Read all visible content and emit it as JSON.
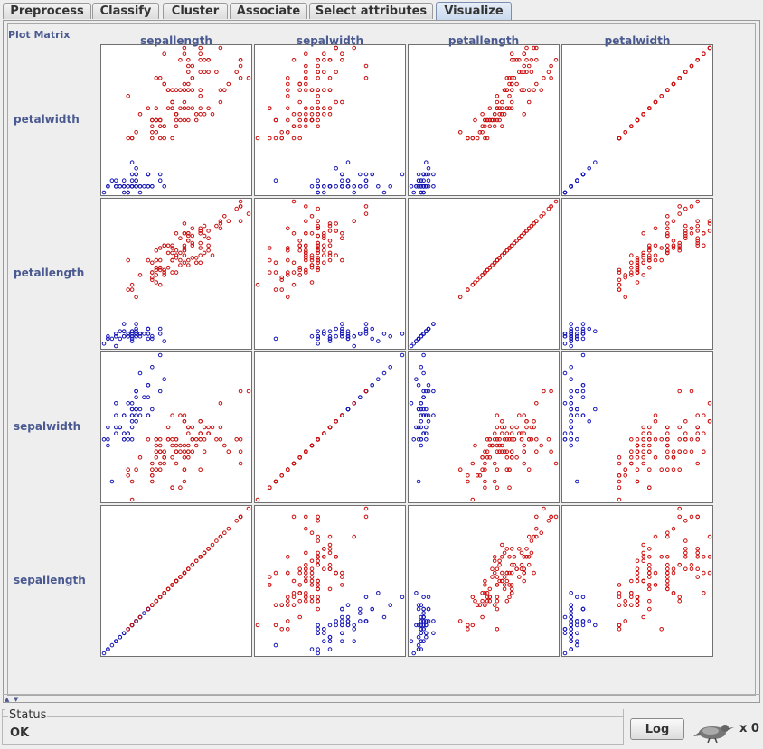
{
  "tabs": [
    {
      "label": "Preprocess",
      "active": false
    },
    {
      "label": "Classify",
      "active": false
    },
    {
      "label": "Cluster",
      "active": false
    },
    {
      "label": "Associate",
      "active": false
    },
    {
      "label": "Select attributes",
      "active": false
    },
    {
      "label": "Visualize",
      "active": true
    }
  ],
  "plot_matrix": {
    "title": "Plot Matrix",
    "columns": [
      "sepallength",
      "sepalwidth",
      "petallength",
      "petalwidth"
    ],
    "rows": [
      "petalwidth",
      "petallength",
      "sepalwidth",
      "sepallength"
    ],
    "colors": {
      "class_a": "#1a1ab8",
      "class_b": "#cc1010"
    }
  },
  "chart_data": {
    "type": "scatter",
    "title": "Plot Matrix",
    "attributes": [
      "sepallength",
      "sepalwidth",
      "petallength",
      "petalwidth"
    ],
    "ranges": {
      "sepallength": [
        4.3,
        7.9
      ],
      "sepalwidth": [
        2.0,
        4.4
      ],
      "petallength": [
        1.0,
        6.9
      ],
      "petalwidth": [
        0.1,
        2.5
      ]
    },
    "series": [
      {
        "color": "#1a1ab8",
        "points": [
          [
            5.1,
            3.5,
            1.4,
            0.2
          ],
          [
            4.9,
            3.0,
            1.4,
            0.2
          ],
          [
            4.7,
            3.2,
            1.3,
            0.2
          ],
          [
            4.6,
            3.1,
            1.5,
            0.2
          ],
          [
            5.0,
            3.6,
            1.4,
            0.2
          ],
          [
            5.4,
            3.9,
            1.7,
            0.4
          ],
          [
            4.6,
            3.4,
            1.4,
            0.3
          ],
          [
            5.0,
            3.4,
            1.5,
            0.2
          ],
          [
            4.4,
            2.9,
            1.4,
            0.2
          ],
          [
            4.9,
            3.1,
            1.5,
            0.1
          ],
          [
            5.4,
            3.7,
            1.5,
            0.2
          ],
          [
            4.8,
            3.4,
            1.6,
            0.2
          ],
          [
            4.8,
            3.0,
            1.4,
            0.1
          ],
          [
            4.3,
            3.0,
            1.1,
            0.1
          ],
          [
            5.8,
            4.0,
            1.2,
            0.2
          ],
          [
            5.7,
            4.4,
            1.5,
            0.4
          ],
          [
            5.4,
            3.9,
            1.3,
            0.4
          ],
          [
            5.1,
            3.5,
            1.4,
            0.3
          ],
          [
            5.7,
            3.8,
            1.7,
            0.3
          ],
          [
            5.1,
            3.8,
            1.5,
            0.3
          ],
          [
            5.4,
            3.4,
            1.7,
            0.2
          ],
          [
            5.1,
            3.7,
            1.5,
            0.4
          ],
          [
            4.6,
            3.6,
            1.0,
            0.2
          ],
          [
            5.1,
            3.3,
            1.7,
            0.5
          ],
          [
            4.8,
            3.4,
            1.9,
            0.2
          ],
          [
            5.0,
            3.0,
            1.6,
            0.2
          ],
          [
            5.0,
            3.4,
            1.6,
            0.4
          ],
          [
            5.2,
            3.5,
            1.5,
            0.2
          ],
          [
            5.2,
            3.4,
            1.4,
            0.2
          ],
          [
            4.7,
            3.2,
            1.6,
            0.2
          ],
          [
            4.8,
            3.1,
            1.6,
            0.2
          ],
          [
            5.4,
            3.4,
            1.5,
            0.4
          ],
          [
            5.2,
            4.1,
            1.5,
            0.1
          ],
          [
            5.5,
            4.2,
            1.4,
            0.2
          ],
          [
            4.9,
            3.1,
            1.5,
            0.2
          ],
          [
            5.0,
            3.2,
            1.2,
            0.2
          ],
          [
            5.5,
            3.5,
            1.3,
            0.2
          ],
          [
            4.9,
            3.6,
            1.4,
            0.1
          ],
          [
            4.4,
            3.0,
            1.3,
            0.2
          ],
          [
            5.1,
            3.4,
            1.5,
            0.2
          ],
          [
            5.0,
            3.5,
            1.3,
            0.3
          ],
          [
            4.5,
            2.3,
            1.3,
            0.3
          ],
          [
            4.4,
            3.2,
            1.3,
            0.2
          ],
          [
            5.0,
            3.5,
            1.6,
            0.6
          ],
          [
            5.1,
            3.8,
            1.9,
            0.4
          ],
          [
            4.8,
            3.0,
            1.4,
            0.3
          ],
          [
            5.1,
            3.8,
            1.6,
            0.2
          ],
          [
            4.6,
            3.2,
            1.4,
            0.2
          ],
          [
            5.3,
            3.7,
            1.5,
            0.2
          ],
          [
            5.0,
            3.3,
            1.4,
            0.2
          ]
        ]
      },
      {
        "color": "#cc1010",
        "points": [
          [
            7.0,
            3.2,
            4.7,
            1.4
          ],
          [
            6.4,
            3.2,
            4.5,
            1.5
          ],
          [
            6.9,
            3.1,
            4.9,
            1.5
          ],
          [
            5.5,
            2.3,
            4.0,
            1.3
          ],
          [
            6.5,
            2.8,
            4.6,
            1.5
          ],
          [
            5.7,
            2.8,
            4.5,
            1.3
          ],
          [
            6.3,
            3.3,
            4.7,
            1.6
          ],
          [
            4.9,
            2.4,
            3.3,
            1.0
          ],
          [
            6.6,
            2.9,
            4.6,
            1.3
          ],
          [
            5.2,
            2.7,
            3.9,
            1.4
          ],
          [
            5.0,
            2.0,
            3.5,
            1.0
          ],
          [
            5.9,
            3.0,
            4.2,
            1.5
          ],
          [
            6.0,
            2.2,
            4.0,
            1.0
          ],
          [
            6.1,
            2.9,
            4.7,
            1.4
          ],
          [
            5.6,
            2.9,
            3.6,
            1.3
          ],
          [
            6.7,
            3.1,
            4.4,
            1.4
          ],
          [
            5.6,
            3.0,
            4.5,
            1.5
          ],
          [
            5.8,
            2.7,
            4.1,
            1.0
          ],
          [
            6.2,
            2.2,
            4.5,
            1.5
          ],
          [
            5.6,
            2.5,
            3.9,
            1.1
          ],
          [
            5.9,
            3.2,
            4.8,
            1.8
          ],
          [
            6.1,
            2.8,
            4.0,
            1.3
          ],
          [
            6.3,
            2.5,
            4.9,
            1.5
          ],
          [
            6.1,
            2.8,
            4.7,
            1.2
          ],
          [
            6.4,
            2.9,
            4.3,
            1.3
          ],
          [
            6.6,
            3.0,
            4.4,
            1.4
          ],
          [
            6.8,
            2.8,
            4.8,
            1.4
          ],
          [
            6.7,
            3.0,
            5.0,
            1.7
          ],
          [
            6.0,
            2.9,
            4.5,
            1.5
          ],
          [
            5.7,
            2.6,
            3.5,
            1.0
          ],
          [
            5.5,
            2.4,
            3.8,
            1.1
          ],
          [
            5.5,
            2.4,
            3.7,
            1.0
          ],
          [
            5.8,
            2.7,
            3.9,
            1.2
          ],
          [
            6.0,
            2.7,
            5.1,
            1.6
          ],
          [
            5.4,
            3.0,
            4.5,
            1.5
          ],
          [
            6.0,
            3.4,
            4.5,
            1.6
          ],
          [
            6.7,
            3.1,
            4.7,
            1.5
          ],
          [
            6.3,
            2.3,
            4.4,
            1.3
          ],
          [
            5.6,
            3.0,
            4.1,
            1.3
          ],
          [
            5.5,
            2.5,
            4.0,
            1.3
          ],
          [
            5.5,
            2.6,
            4.4,
            1.2
          ],
          [
            6.1,
            3.0,
            4.6,
            1.4
          ],
          [
            5.8,
            2.6,
            4.0,
            1.2
          ],
          [
            5.0,
            2.3,
            3.3,
            1.0
          ],
          [
            5.6,
            2.7,
            4.2,
            1.3
          ],
          [
            5.7,
            3.0,
            4.2,
            1.2
          ],
          [
            5.7,
            2.9,
            4.2,
            1.3
          ],
          [
            6.2,
            2.9,
            4.3,
            1.3
          ],
          [
            5.1,
            2.5,
            3.0,
            1.1
          ],
          [
            5.7,
            2.8,
            4.1,
            1.3
          ],
          [
            6.3,
            3.3,
            6.0,
            2.5
          ],
          [
            5.8,
            2.7,
            5.1,
            1.9
          ],
          [
            7.1,
            3.0,
            5.9,
            2.1
          ],
          [
            6.3,
            2.9,
            5.6,
            1.8
          ],
          [
            6.5,
            3.0,
            5.8,
            2.2
          ],
          [
            7.6,
            3.0,
            6.6,
            2.1
          ],
          [
            4.9,
            2.5,
            4.5,
            1.7
          ],
          [
            7.3,
            2.9,
            6.3,
            1.8
          ],
          [
            6.7,
            2.5,
            5.8,
            1.8
          ],
          [
            7.2,
            3.6,
            6.1,
            2.5
          ],
          [
            6.5,
            3.2,
            5.1,
            2.0
          ],
          [
            6.4,
            2.7,
            5.3,
            1.9
          ],
          [
            6.8,
            3.0,
            5.5,
            2.1
          ],
          [
            5.7,
            2.5,
            5.0,
            2.0
          ],
          [
            5.8,
            2.8,
            5.1,
            2.4
          ],
          [
            6.4,
            3.2,
            5.3,
            2.3
          ],
          [
            6.5,
            3.0,
            5.5,
            1.8
          ],
          [
            7.7,
            3.8,
            6.7,
            2.2
          ],
          [
            7.7,
            2.6,
            6.9,
            2.3
          ],
          [
            6.0,
            2.2,
            5.0,
            1.5
          ],
          [
            6.9,
            3.2,
            5.7,
            2.3
          ],
          [
            5.6,
            2.8,
            4.9,
            2.0
          ],
          [
            7.7,
            2.8,
            6.7,
            2.0
          ],
          [
            6.3,
            2.7,
            4.9,
            1.8
          ],
          [
            6.7,
            3.3,
            5.7,
            2.1
          ],
          [
            7.2,
            3.2,
            6.0,
            1.8
          ],
          [
            6.2,
            2.8,
            4.8,
            1.8
          ],
          [
            6.1,
            3.0,
            4.9,
            1.8
          ],
          [
            6.4,
            2.8,
            5.6,
            2.1
          ],
          [
            7.2,
            3.0,
            5.8,
            1.6
          ],
          [
            7.4,
            2.8,
            6.1,
            1.9
          ],
          [
            7.9,
            3.8,
            6.4,
            2.0
          ],
          [
            6.4,
            2.8,
            5.6,
            2.2
          ],
          [
            6.3,
            2.8,
            5.1,
            1.5
          ],
          [
            6.1,
            2.6,
            5.6,
            1.4
          ],
          [
            7.7,
            3.0,
            6.1,
            2.3
          ],
          [
            6.3,
            3.4,
            5.6,
            2.4
          ],
          [
            6.4,
            3.1,
            5.5,
            1.8
          ],
          [
            6.0,
            3.0,
            4.8,
            1.8
          ],
          [
            6.9,
            3.1,
            5.4,
            2.1
          ],
          [
            6.7,
            3.1,
            5.6,
            2.4
          ],
          [
            6.9,
            3.1,
            5.1,
            2.3
          ],
          [
            5.8,
            2.7,
            5.1,
            1.9
          ],
          [
            6.8,
            3.2,
            5.9,
            2.3
          ],
          [
            6.7,
            3.3,
            5.7,
            2.5
          ],
          [
            6.7,
            3.0,
            5.2,
            2.3
          ],
          [
            6.3,
            2.5,
            5.0,
            1.9
          ],
          [
            6.5,
            3.0,
            5.2,
            2.0
          ],
          [
            6.2,
            3.4,
            5.4,
            2.3
          ],
          [
            5.9,
            3.0,
            5.1,
            1.8
          ]
        ]
      }
    ]
  },
  "status": {
    "legend": "Status",
    "text": "OK"
  },
  "log_button": "Log",
  "task_count": "x 0"
}
